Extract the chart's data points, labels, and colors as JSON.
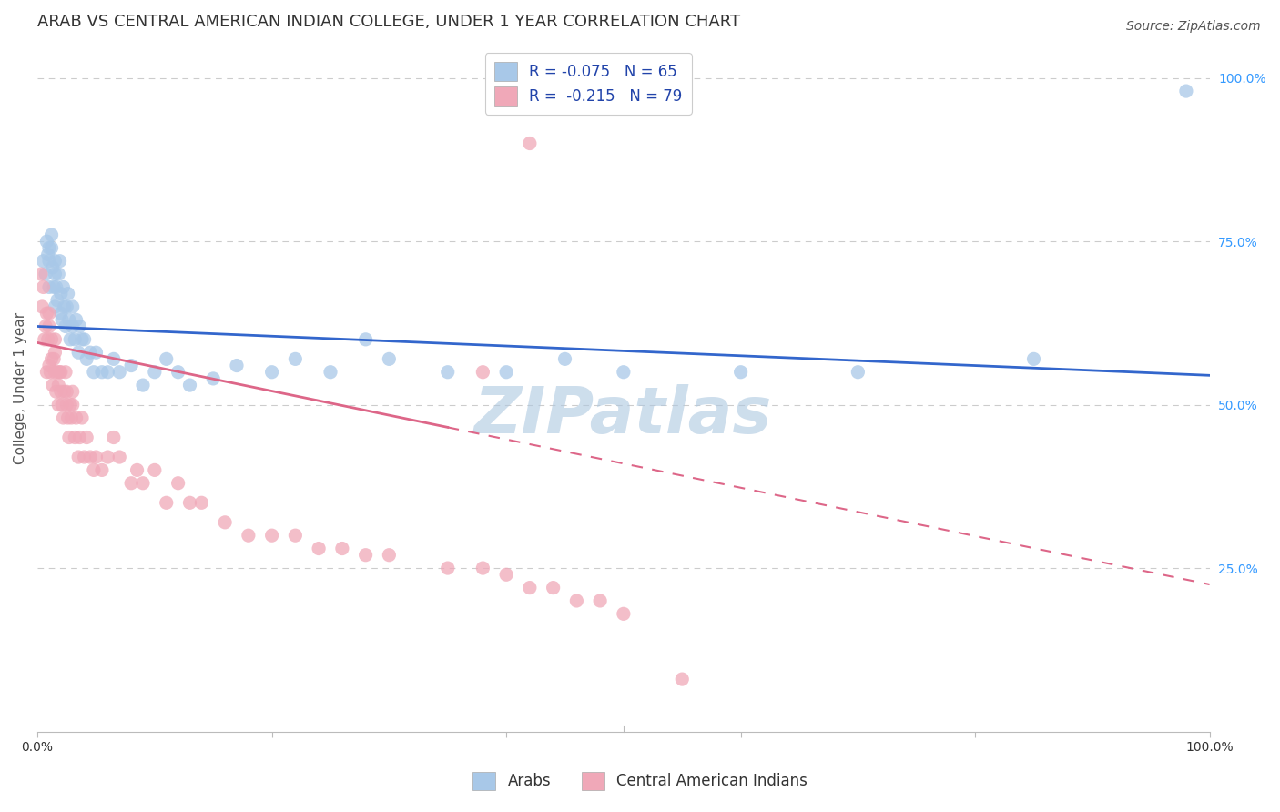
{
  "title": "ARAB VS CENTRAL AMERICAN INDIAN COLLEGE, UNDER 1 YEAR CORRELATION CHART",
  "source": "Source: ZipAtlas.com",
  "ylabel": "College, Under 1 year",
  "right_yticks": [
    "100.0%",
    "75.0%",
    "50.0%",
    "25.0%"
  ],
  "right_ytick_vals": [
    1.0,
    0.75,
    0.5,
    0.25
  ],
  "legend_arab": "R = -0.075   N = 65",
  "legend_cai": "R =  -0.215   N = 79",
  "arab_color": "#a8c8e8",
  "cai_color": "#f0a8b8",
  "arab_line_color": "#3366cc",
  "cai_line_color": "#dd6688",
  "watermark": "ZIPatlas",
  "arab_intercept": 0.62,
  "arab_slope": -0.075,
  "cai_intercept": 0.595,
  "cai_slope": -0.37,
  "xlim": [
    0.0,
    1.0
  ],
  "ylim": [
    0.0,
    1.05
  ],
  "background_color": "#ffffff",
  "grid_color": "#cccccc",
  "title_fontsize": 13,
  "source_fontsize": 10,
  "axis_label_fontsize": 11,
  "tick_fontsize": 10,
  "legend_fontsize": 12,
  "watermark_color": "#adc8e0",
  "watermark_fontsize": 52,
  "arab_x": [
    0.005,
    0.007,
    0.008,
    0.009,
    0.01,
    0.01,
    0.01,
    0.012,
    0.012,
    0.013,
    0.014,
    0.015,
    0.015,
    0.015,
    0.016,
    0.017,
    0.018,
    0.019,
    0.02,
    0.02,
    0.021,
    0.022,
    0.023,
    0.024,
    0.025,
    0.026,
    0.027,
    0.028,
    0.03,
    0.03,
    0.032,
    0.033,
    0.035,
    0.036,
    0.038,
    0.04,
    0.042,
    0.045,
    0.048,
    0.05,
    0.055,
    0.06,
    0.065,
    0.07,
    0.08,
    0.09,
    0.1,
    0.11,
    0.12,
    0.13,
    0.15,
    0.17,
    0.2,
    0.22,
    0.25,
    0.28,
    0.3,
    0.35,
    0.4,
    0.45,
    0.5,
    0.6,
    0.7,
    0.85,
    0.98
  ],
  "arab_y": [
    0.72,
    0.7,
    0.75,
    0.73,
    0.72,
    0.74,
    0.68,
    0.74,
    0.76,
    0.71,
    0.68,
    0.72,
    0.7,
    0.65,
    0.68,
    0.66,
    0.7,
    0.72,
    0.64,
    0.67,
    0.63,
    0.68,
    0.65,
    0.62,
    0.65,
    0.67,
    0.63,
    0.6,
    0.62,
    0.65,
    0.6,
    0.63,
    0.58,
    0.62,
    0.6,
    0.6,
    0.57,
    0.58,
    0.55,
    0.58,
    0.55,
    0.55,
    0.57,
    0.55,
    0.56,
    0.53,
    0.55,
    0.57,
    0.55,
    0.53,
    0.54,
    0.56,
    0.55,
    0.57,
    0.55,
    0.6,
    0.57,
    0.55,
    0.55,
    0.57,
    0.55,
    0.55,
    0.55,
    0.57,
    0.98
  ],
  "cai_x": [
    0.003,
    0.004,
    0.005,
    0.006,
    0.007,
    0.008,
    0.008,
    0.009,
    0.01,
    0.01,
    0.01,
    0.011,
    0.012,
    0.012,
    0.013,
    0.014,
    0.015,
    0.015,
    0.015,
    0.016,
    0.017,
    0.018,
    0.018,
    0.019,
    0.02,
    0.02,
    0.021,
    0.022,
    0.023,
    0.024,
    0.025,
    0.025,
    0.026,
    0.027,
    0.028,
    0.029,
    0.03,
    0.03,
    0.032,
    0.033,
    0.035,
    0.036,
    0.038,
    0.04,
    0.042,
    0.045,
    0.048,
    0.05,
    0.055,
    0.06,
    0.065,
    0.07,
    0.08,
    0.085,
    0.09,
    0.1,
    0.11,
    0.12,
    0.13,
    0.14,
    0.16,
    0.18,
    0.2,
    0.22,
    0.24,
    0.26,
    0.28,
    0.3,
    0.35,
    0.38,
    0.4,
    0.42,
    0.44,
    0.46,
    0.48,
    0.5,
    0.55,
    0.38,
    0.42
  ],
  "cai_y": [
    0.7,
    0.65,
    0.68,
    0.6,
    0.62,
    0.64,
    0.55,
    0.6,
    0.62,
    0.64,
    0.56,
    0.55,
    0.57,
    0.6,
    0.53,
    0.57,
    0.58,
    0.6,
    0.55,
    0.52,
    0.55,
    0.5,
    0.53,
    0.55,
    0.52,
    0.55,
    0.5,
    0.48,
    0.52,
    0.55,
    0.5,
    0.52,
    0.48,
    0.45,
    0.5,
    0.48,
    0.5,
    0.52,
    0.45,
    0.48,
    0.42,
    0.45,
    0.48,
    0.42,
    0.45,
    0.42,
    0.4,
    0.42,
    0.4,
    0.42,
    0.45,
    0.42,
    0.38,
    0.4,
    0.38,
    0.4,
    0.35,
    0.38,
    0.35,
    0.35,
    0.32,
    0.3,
    0.3,
    0.3,
    0.28,
    0.28,
    0.27,
    0.27,
    0.25,
    0.25,
    0.24,
    0.22,
    0.22,
    0.2,
    0.2,
    0.18,
    0.08,
    0.55,
    0.9
  ]
}
